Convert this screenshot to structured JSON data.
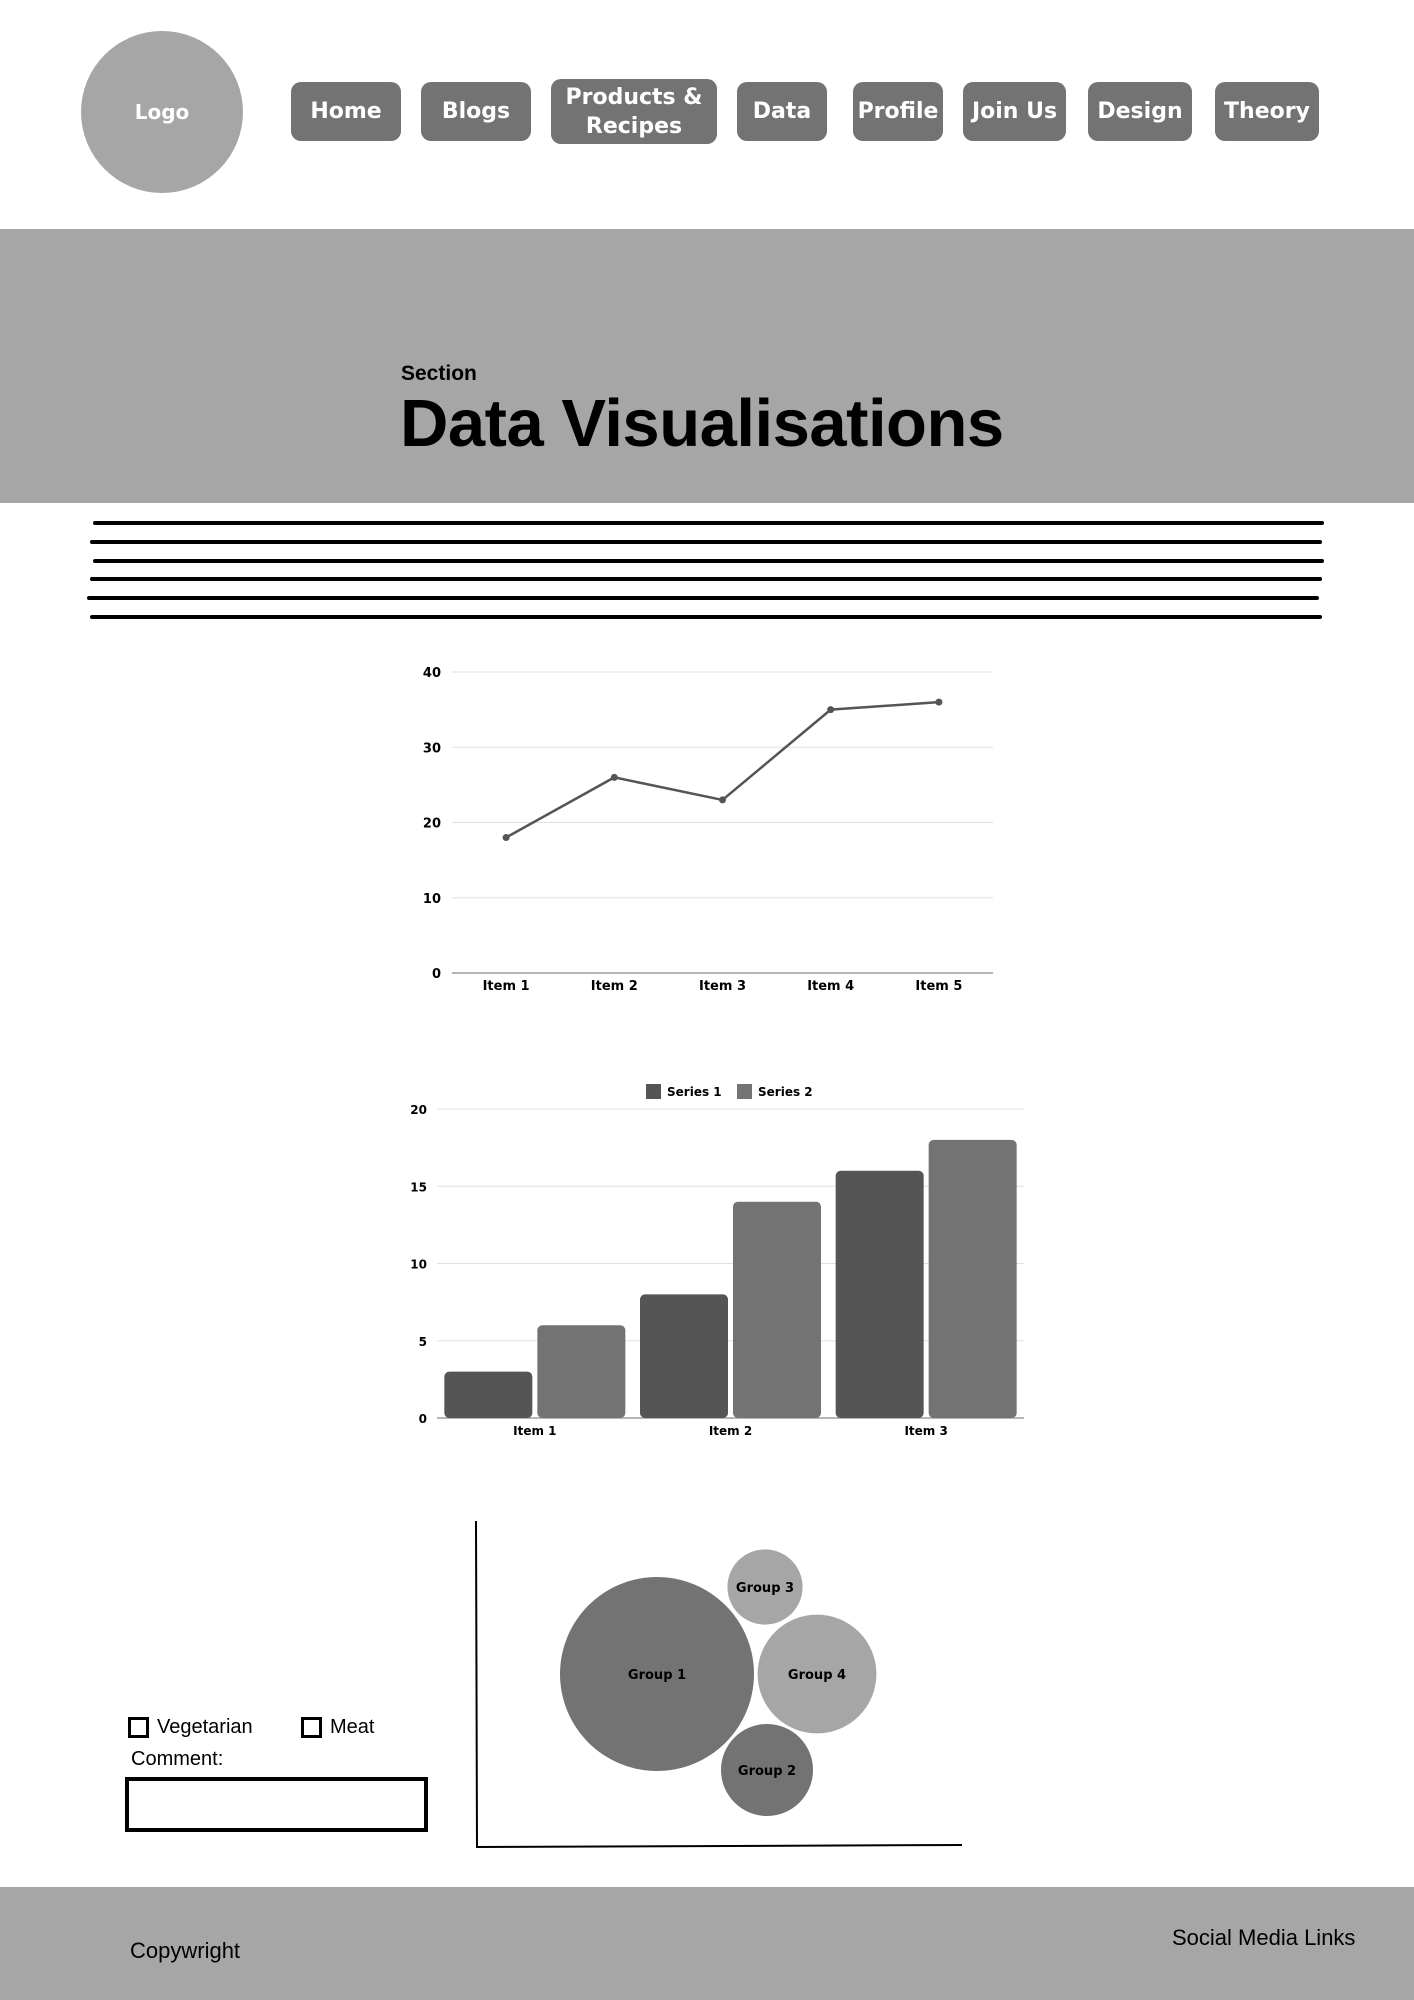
{
  "header": {
    "logo": "Logo",
    "nav": [
      {
        "label": "Home"
      },
      {
        "label": "Blogs"
      },
      {
        "label": "Products & Recipes"
      },
      {
        "label": "Data"
      },
      {
        "label": "Profile"
      },
      {
        "label": "Join Us"
      },
      {
        "label": "Design"
      },
      {
        "label": "Theory"
      }
    ]
  },
  "hero": {
    "kicker": "Section",
    "title": "Data Visualisations"
  },
  "chart_data": [
    {
      "type": "line",
      "categories": [
        "Item 1",
        "Item 2",
        "Item 3",
        "Item 4",
        "Item 5"
      ],
      "values": [
        18,
        26,
        23,
        35,
        36
      ],
      "yticks": [
        "0",
        "10",
        "20",
        "30",
        "40"
      ],
      "ylim": [
        0,
        40
      ],
      "grid": true,
      "color": "#555555"
    },
    {
      "type": "bar",
      "categories": [
        "Item 1",
        "Item 2",
        "Item 3"
      ],
      "series": [
        {
          "name": "Series 1",
          "values": [
            3,
            8,
            16
          ],
          "color": "#555555"
        },
        {
          "name": "Series 2",
          "values": [
            6,
            14,
            18
          ],
          "color": "#737373"
        }
      ],
      "yticks": [
        "0",
        "5",
        "10",
        "15",
        "20"
      ],
      "ylim": [
        0,
        20
      ],
      "grid": true,
      "legend": "top"
    },
    {
      "type": "bubble",
      "groups": [
        {
          "label": "Group 1",
          "size": 4,
          "color": "#737373"
        },
        {
          "label": "Group 3",
          "size": 0.6,
          "color": "#a6a6a6"
        },
        {
          "label": "Group 4",
          "size": 1.5,
          "color": "#a6a6a6"
        },
        {
          "label": "Group 2",
          "size": 0.9,
          "color": "#737373"
        }
      ]
    }
  ],
  "form": {
    "options": [
      {
        "label": "Vegetarian",
        "checked": false
      },
      {
        "label": "Meat",
        "checked": false
      }
    ],
    "comment_label": "Comment:",
    "comment_value": ""
  },
  "footer": {
    "copyright": "Copywright",
    "social": "Social Media Links"
  }
}
